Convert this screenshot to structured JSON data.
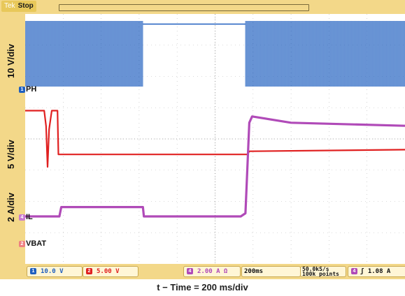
{
  "chart_data": {
    "type": "line",
    "instrument": {
      "brand": "Tek",
      "run_state": "Stop"
    },
    "title": "",
    "xlabel": "t − Time = 200 ms/div",
    "x_units": "ms",
    "xlim": [
      0,
      2000
    ],
    "grid": true,
    "channels": [
      {
        "id": "1",
        "name": "PH",
        "scale_label": "10 V/div",
        "readout": "10.0 V",
        "color": "#1f5fbf"
      },
      {
        "id": "2",
        "name": "VBAT",
        "scale_label": "5 V/div",
        "readout": "5.00 V",
        "color": "#e02020"
      },
      {
        "id": "4",
        "name": "IL",
        "scale_label": "2 A/div",
        "readout": "2.00 A Ω",
        "color": "#b04ab8"
      }
    ],
    "series": [
      {
        "channel": "PH",
        "segments": [
          {
            "from": 0,
            "to": 620,
            "state": "switching"
          },
          {
            "from": 620,
            "to": 1160,
            "state": "idle",
            "level": 2
          },
          {
            "from": 1160,
            "to": 2000,
            "state": "switching"
          }
        ]
      },
      {
        "channel": "VBAT",
        "points": [
          [
            0,
            2
          ],
          [
            100,
            2
          ],
          [
            110,
            1.5
          ],
          [
            118,
            0.2
          ],
          [
            126,
            1.4
          ],
          [
            140,
            2
          ],
          [
            170,
            2
          ],
          [
            175,
            0.6
          ],
          [
            320,
            0.6
          ],
          [
            1170,
            0.6
          ],
          [
            1180,
            0.7
          ],
          [
            2000,
            0.75
          ]
        ]
      },
      {
        "channel": "IL",
        "points": [
          [
            0,
            0
          ],
          [
            180,
            0
          ],
          [
            190,
            0.3
          ],
          [
            620,
            0.3
          ],
          [
            625,
            0
          ],
          [
            1135,
            0
          ],
          [
            1160,
            0.1
          ],
          [
            1180,
            3.0
          ],
          [
            1195,
            3.2
          ],
          [
            1400,
            3.0
          ],
          [
            2000,
            2.9
          ]
        ]
      }
    ],
    "status_bar": {
      "ch1": "10.0 V",
      "ch2": "5.00 V",
      "ch4": "2.00 A Ω",
      "timebase": "200ms",
      "sample_rate": "50.0kS/s",
      "record_length": "100k points",
      "trigger_channel": "4",
      "trigger_slope": "ʃ",
      "trigger_level": "1.08 A"
    }
  },
  "colors": {
    "frame": "#f3d889",
    "grid": "#b8b8b8",
    "ph": "#1f5fbf",
    "vbat": "#e02020",
    "il": "#b04ab8"
  }
}
